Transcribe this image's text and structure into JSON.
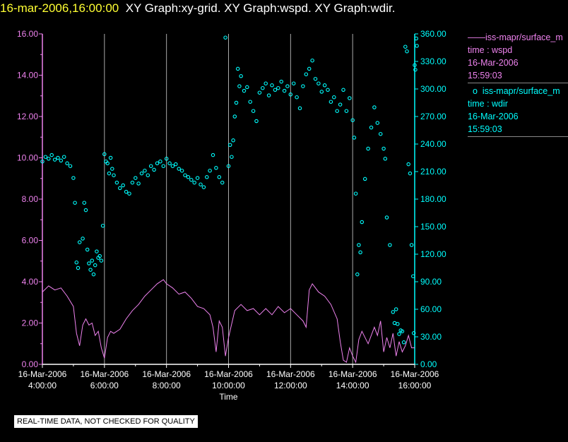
{
  "header": {
    "timestamp": "16-mar-2006,16:00:00",
    "graphs": "XY Graph:xy-grid.  XY Graph:wspd.  XY Graph:wdir."
  },
  "colors": {
    "wspd": "#ee82ee",
    "wdir": "#00ffff",
    "axis_left": "#ee82ee",
    "axis_right": "#00ffff",
    "grid": "#aaaaaa",
    "text": "#ffffff",
    "timestamp": "#ffff33"
  },
  "legend": [
    {
      "symbol": "——",
      "series": "iss-mapr/surface_m",
      "axis": "time : wspd",
      "date": "16-Mar-2006",
      "time": "15:59:03",
      "color": "#ee82ee"
    },
    {
      "symbol": "o",
      "series": "iss-mapr/surface_m",
      "axis": "time : wdir",
      "date": "16-Mar-2006",
      "time": "15:59:03",
      "color": "#00ffff"
    }
  ],
  "notice": "REAL-TIME DATA, NOT CHECKED FOR QUALITY",
  "chart_data": {
    "type": "line",
    "xlabel": "Time",
    "xlim": [
      4.0,
      16.0
    ],
    "x_ticks": [
      {
        "date": "16-Mar-2006",
        "time": "4:00:00",
        "hour": 4
      },
      {
        "date": "16-Mar-2006",
        "time": "6:00:00",
        "hour": 6
      },
      {
        "date": "16-Mar-2006",
        "time": "8:00:00",
        "hour": 8
      },
      {
        "date": "16-Mar-2006",
        "time": "10:00:00",
        "hour": 10
      },
      {
        "date": "16-Mar-2006",
        "time": "12:00:00",
        "hour": 12
      },
      {
        "date": "16-Mar-2006",
        "time": "14:00:00",
        "hour": 14
      },
      {
        "date": "16-Mar-2006",
        "time": "16:00:00",
        "hour": 16
      }
    ],
    "y_left": {
      "ylim": [
        0,
        16
      ],
      "ticks": [
        "0.00",
        "2.00",
        "4.00",
        "6.00",
        "8.00",
        "10.00",
        "12.00",
        "14.00",
        "16.00"
      ]
    },
    "y_right": {
      "ylim": [
        0,
        360
      ],
      "ticks": [
        "0.00",
        "30.00",
        "60.00",
        "90.00",
        "120.00",
        "150.00",
        "180.00",
        "210.00",
        "240.00",
        "270.00",
        "300.00",
        "330.00",
        "360.00"
      ]
    },
    "grid": "vertical",
    "series": [
      {
        "name": "iss-mapr/surface_m  time : wspd",
        "style": "line",
        "axis": "left",
        "points": [
          [
            4.0,
            3.5
          ],
          [
            4.2,
            3.8
          ],
          [
            4.4,
            3.6
          ],
          [
            4.6,
            3.7
          ],
          [
            4.8,
            3.3
          ],
          [
            5.0,
            2.8
          ],
          [
            5.1,
            1.5
          ],
          [
            5.2,
            0.9
          ],
          [
            5.3,
            1.9
          ],
          [
            5.4,
            2.2
          ],
          [
            5.5,
            1.9
          ],
          [
            5.6,
            2.0
          ],
          [
            5.7,
            1.4
          ],
          [
            5.8,
            1.6
          ],
          [
            5.9,
            0.8
          ],
          [
            6.0,
            0.3
          ],
          [
            6.1,
            1.3
          ],
          [
            6.2,
            1.6
          ],
          [
            6.3,
            1.5
          ],
          [
            6.5,
            1.7
          ],
          [
            6.7,
            2.2
          ],
          [
            6.9,
            2.6
          ],
          [
            7.1,
            2.9
          ],
          [
            7.3,
            3.3
          ],
          [
            7.5,
            3.6
          ],
          [
            7.7,
            3.9
          ],
          [
            7.9,
            4.1
          ],
          [
            8.0,
            3.9
          ],
          [
            8.2,
            3.7
          ],
          [
            8.4,
            3.4
          ],
          [
            8.6,
            3.5
          ],
          [
            8.8,
            3.2
          ],
          [
            9.0,
            2.8
          ],
          [
            9.2,
            2.7
          ],
          [
            9.4,
            2.4
          ],
          [
            9.5,
            1.8
          ],
          [
            9.6,
            0.6
          ],
          [
            9.7,
            2.1
          ],
          [
            9.8,
            1.8
          ],
          [
            9.9,
            0.4
          ],
          [
            10.0,
            1.3
          ],
          [
            10.2,
            2.6
          ],
          [
            10.4,
            2.9
          ],
          [
            10.6,
            2.6
          ],
          [
            10.8,
            2.7
          ],
          [
            11.0,
            2.4
          ],
          [
            11.2,
            2.7
          ],
          [
            11.4,
            2.4
          ],
          [
            11.6,
            2.8
          ],
          [
            11.8,
            2.5
          ],
          [
            12.0,
            2.7
          ],
          [
            12.2,
            2.4
          ],
          [
            12.4,
            2.1
          ],
          [
            12.5,
            1.8
          ],
          [
            12.6,
            3.6
          ],
          [
            12.7,
            3.9
          ],
          [
            12.9,
            3.5
          ],
          [
            13.1,
            3.3
          ],
          [
            13.3,
            2.9
          ],
          [
            13.5,
            2.2
          ],
          [
            13.6,
            1.1
          ],
          [
            13.7,
            0.2
          ],
          [
            13.8,
            0.1
          ],
          [
            13.9,
            0.8
          ],
          [
            14.0,
            0.4
          ],
          [
            14.1,
            0.1
          ],
          [
            14.2,
            1.2
          ],
          [
            14.3,
            1.6
          ],
          [
            14.5,
            1.0
          ],
          [
            14.7,
            1.8
          ],
          [
            14.8,
            1.4
          ],
          [
            14.9,
            2.1
          ],
          [
            15.0,
            0.6
          ],
          [
            15.1,
            1.3
          ],
          [
            15.2,
            0.8
          ],
          [
            15.3,
            1.5
          ],
          [
            15.4,
            0.4
          ],
          [
            15.5,
            1.1
          ],
          [
            15.6,
            0.6
          ],
          [
            15.7,
            0.9
          ],
          [
            15.8,
            1.4
          ],
          [
            15.9,
            0.8
          ],
          [
            16.0,
            0.8
          ]
        ]
      },
      {
        "name": "iss-mapr/surface_m  time : wdir",
        "style": "scatter",
        "axis": "right",
        "points": [
          [
            4.0,
            221
          ],
          [
            4.1,
            226
          ],
          [
            4.2,
            224
          ],
          [
            4.3,
            228
          ],
          [
            4.4,
            223
          ],
          [
            4.5,
            225
          ],
          [
            4.6,
            222
          ],
          [
            4.7,
            226
          ],
          [
            4.8,
            219
          ],
          [
            4.9,
            216
          ],
          [
            5.0,
            203
          ],
          [
            5.05,
            176
          ],
          [
            5.1,
            111
          ],
          [
            5.15,
            105
          ],
          [
            5.2,
            133
          ],
          [
            5.3,
            137
          ],
          [
            5.35,
            176
          ],
          [
            5.4,
            168
          ],
          [
            5.45,
            125
          ],
          [
            5.5,
            110
          ],
          [
            5.55,
            103
          ],
          [
            5.6,
            113
          ],
          [
            5.65,
            98
          ],
          [
            5.7,
            108
          ],
          [
            5.75,
            123
          ],
          [
            5.8,
            116
          ],
          [
            5.85,
            118
          ],
          [
            5.9,
            113
          ],
          [
            5.95,
            151
          ],
          [
            6.0,
            229
          ],
          [
            6.05,
            221
          ],
          [
            6.1,
            219
          ],
          [
            6.15,
            208
          ],
          [
            6.2,
            225
          ],
          [
            6.25,
            213
          ],
          [
            6.3,
            206
          ],
          [
            6.4,
            198
          ],
          [
            6.5,
            192
          ],
          [
            6.6,
            195
          ],
          [
            6.7,
            188
          ],
          [
            6.8,
            186
          ],
          [
            6.9,
            198
          ],
          [
            7.0,
            203
          ],
          [
            7.1,
            197
          ],
          [
            7.2,
            208
          ],
          [
            7.3,
            211
          ],
          [
            7.4,
            206
          ],
          [
            7.5,
            216
          ],
          [
            7.6,
            212
          ],
          [
            7.7,
            219
          ],
          [
            7.8,
            221
          ],
          [
            7.9,
            216
          ],
          [
            8.0,
            224
          ],
          [
            8.1,
            219
          ],
          [
            8.2,
            216
          ],
          [
            8.3,
            218
          ],
          [
            8.4,
            213
          ],
          [
            8.5,
            211
          ],
          [
            8.6,
            206
          ],
          [
            8.7,
            204
          ],
          [
            8.8,
            201
          ],
          [
            8.9,
            198
          ],
          [
            9.0,
            203
          ],
          [
            9.1,
            196
          ],
          [
            9.2,
            193
          ],
          [
            9.3,
            204
          ],
          [
            9.4,
            211
          ],
          [
            9.5,
            228
          ],
          [
            9.6,
            214
          ],
          [
            9.7,
            204
          ],
          [
            9.8,
            198
          ],
          [
            9.9,
            356
          ],
          [
            10.0,
            216
          ],
          [
            10.05,
            239
          ],
          [
            10.1,
            226
          ],
          [
            10.15,
            244
          ],
          [
            10.2,
            270
          ],
          [
            10.25,
            285
          ],
          [
            10.3,
            322
          ],
          [
            10.35,
            303
          ],
          [
            10.4,
            314
          ],
          [
            10.5,
            298
          ],
          [
            10.6,
            302
          ],
          [
            10.7,
            286
          ],
          [
            10.8,
            276
          ],
          [
            10.9,
            265
          ],
          [
            11.0,
            296
          ],
          [
            11.1,
            301
          ],
          [
            11.2,
            306
          ],
          [
            11.3,
            293
          ],
          [
            11.4,
            304
          ],
          [
            11.5,
            299
          ],
          [
            11.6,
            301
          ],
          [
            11.7,
            308
          ],
          [
            11.8,
            298
          ],
          [
            11.9,
            303
          ],
          [
            12.0,
            294
          ],
          [
            12.1,
            306
          ],
          [
            12.2,
            291
          ],
          [
            12.3,
            279
          ],
          [
            12.4,
            303
          ],
          [
            12.5,
            316
          ],
          [
            12.6,
            322
          ],
          [
            12.7,
            331
          ],
          [
            12.8,
            311
          ],
          [
            12.9,
            306
          ],
          [
            13.0,
            297
          ],
          [
            13.1,
            304
          ],
          [
            13.2,
            299
          ],
          [
            13.3,
            286
          ],
          [
            13.4,
            291
          ],
          [
            13.5,
            276
          ],
          [
            13.6,
            283
          ],
          [
            13.7,
            299
          ],
          [
            13.8,
            276
          ],
          [
            13.9,
            290
          ],
          [
            14.0,
            266
          ],
          [
            14.05,
            247
          ],
          [
            14.1,
            186
          ],
          [
            14.15,
            98
          ],
          [
            14.2,
            130
          ],
          [
            14.25,
            122
          ],
          [
            14.3,
            155
          ],
          [
            14.4,
            202
          ],
          [
            14.5,
            235
          ],
          [
            14.6,
            258
          ],
          [
            14.7,
            280
          ],
          [
            14.8,
            263
          ],
          [
            14.9,
            251
          ],
          [
            15.0,
            235
          ],
          [
            15.05,
            224
          ],
          [
            15.1,
            160
          ],
          [
            15.2,
            130
          ],
          [
            15.3,
            57
          ],
          [
            15.35,
            45
          ],
          [
            15.4,
            60
          ],
          [
            15.45,
            44
          ],
          [
            15.5,
            33
          ],
          [
            15.55,
            37
          ],
          [
            15.6,
            36
          ],
          [
            15.65,
            24
          ],
          [
            15.7,
            346
          ],
          [
            15.75,
            341
          ],
          [
            15.8,
            218
          ],
          [
            15.85,
            208
          ],
          [
            15.9,
            130
          ],
          [
            15.95,
            96
          ],
          [
            15.97,
            34
          ],
          [
            16.0,
            326
          ],
          [
            16.02,
            321
          ],
          [
            16.05,
            355
          ],
          [
            16.07,
            347
          ]
        ]
      }
    ]
  }
}
